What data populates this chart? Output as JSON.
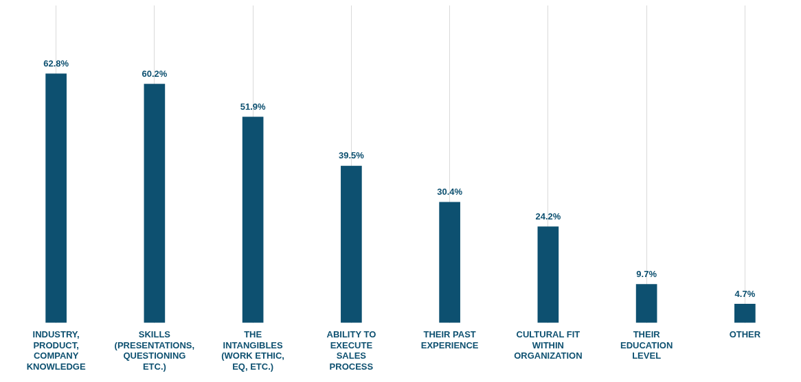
{
  "chart_data": {
    "type": "bar",
    "categories": [
      "INDUSTRY, PRODUCT, COMPANY KNOWLEDGE",
      "SKILLS (PRESENTATIONS, QUESTIONING ETC.)",
      "THE INTANGIBLES (WORK ETHIC, EQ, ETC.)",
      "ABILITY TO EXECUTE SALES PROCESS",
      "THEIR PAST EXPERIENCE",
      "CULTURAL FIT WITHIN ORGANIZATION",
      "THEIR EDUCATION LEVEL",
      "OTHER"
    ],
    "values": [
      62.8,
      60.2,
      51.9,
      39.5,
      30.4,
      24.2,
      9.7,
      4.7
    ],
    "value_labels": [
      "62.8%",
      "60.2%",
      "51.9%",
      "39.5%",
      "30.4%",
      "24.2%",
      "9.7%",
      "4.7%"
    ],
    "color": "#0d5070",
    "grid": "x"
  }
}
